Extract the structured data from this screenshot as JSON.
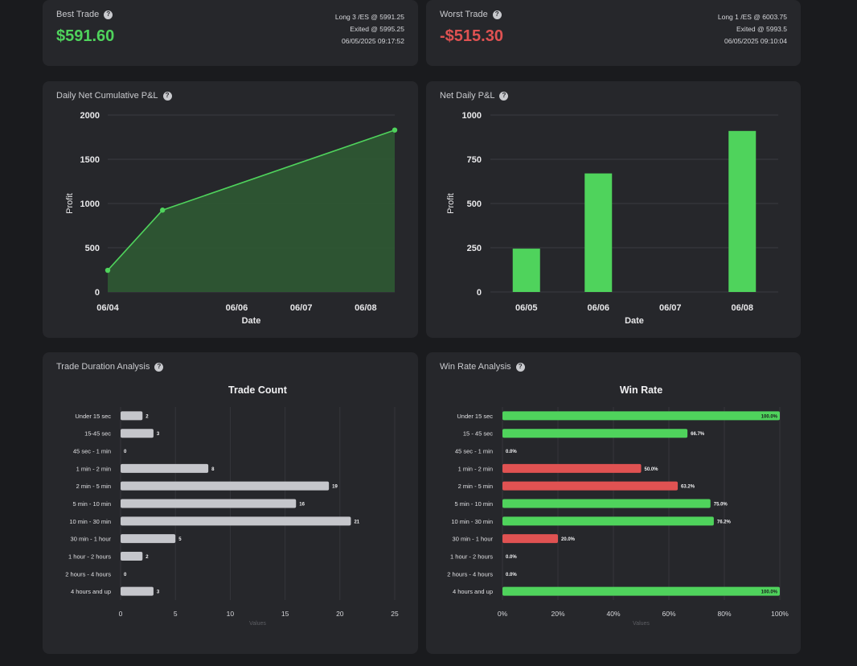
{
  "best_trade": {
    "title": "Best Trade",
    "value": "$591.60",
    "line1": "Long 3 /ES @ 5991.25",
    "line2": "Exited @ 5995.25",
    "line3": "06/05/2025 09:17:52"
  },
  "worst_trade": {
    "title": "Worst Trade",
    "value": "-$515.30",
    "line1": "Long 1 /ES @ 6003.75",
    "line2": "Exited @ 5993.5",
    "line3": "06/05/2025 09:10:04"
  },
  "colors": {
    "green": "#4fd35c",
    "red": "#e05252",
    "gray_bar": "#c5c6cb"
  },
  "chart_data": [
    {
      "id": "cumulative",
      "type": "area",
      "title": "Daily Net Cumulative P&L",
      "xlabel": "Date",
      "ylabel": "Profit",
      "ylim": [
        0,
        2000
      ],
      "yticks": [
        0,
        500,
        1000,
        1500,
        2000
      ],
      "xticks": [
        {
          "label": "06/04",
          "day": 4
        },
        {
          "label": "06/06",
          "day": 6
        },
        {
          "label": "06/07",
          "day": 7
        },
        {
          "label": "06/08",
          "day": 8
        }
      ],
      "xlim": [
        4,
        8.45
      ],
      "points": [
        {
          "day": 4,
          "y": 245
        },
        {
          "day": 4.85,
          "y": 925
        },
        {
          "day": 8.45,
          "y": 1830
        }
      ],
      "grid": true
    },
    {
      "id": "netdaily",
      "type": "bar",
      "title": "Net Daily P&L",
      "xlabel": "Date",
      "ylabel": "Profit",
      "ylim": [
        0,
        1000
      ],
      "yticks": [
        0,
        250,
        500,
        750,
        1000
      ],
      "categories": [
        "06/05",
        "06/06",
        "06/07",
        "06/08"
      ],
      "values": [
        245,
        670,
        null,
        910
      ],
      "grid": true
    },
    {
      "id": "duration",
      "type": "bar",
      "orientation": "horizontal",
      "title": "Trade Duration Analysis",
      "chart_title": "Trade Count",
      "xlabel": "Values",
      "xlim": [
        0,
        25
      ],
      "xticks": [
        0,
        5,
        10,
        15,
        20,
        25
      ],
      "categories": [
        "Under 15 sec",
        "15-45 sec",
        "45 sec - 1 min",
        "1 min - 2 min",
        "2 min - 5 min",
        "5 min - 10 min",
        "10 min - 30 min",
        "30 min - 1 hour",
        "1 hour - 2 hours",
        "2 hours - 4 hours",
        "4 hours and up"
      ],
      "values": [
        2,
        3,
        0,
        8,
        19,
        16,
        21,
        5,
        2,
        0,
        3
      ],
      "labels": [
        "2",
        "3",
        "0",
        "8",
        "19",
        "16",
        "21",
        "5",
        "2",
        "0",
        "3"
      ]
    },
    {
      "id": "winrate",
      "type": "bar",
      "orientation": "horizontal",
      "title": "Win Rate Analysis",
      "chart_title": "Win Rate",
      "xlabel": "Values",
      "xlim": [
        0,
        100
      ],
      "xticks": [
        "0%",
        "20%",
        "40%",
        "60%",
        "80%",
        "100%"
      ],
      "categories": [
        "Under 15 sec",
        "15 - 45 sec",
        "45 sec - 1 min",
        "1 min - 2 min",
        "2 min - 5 min",
        "5 min - 10 min",
        "10 min - 30 min",
        "30 min - 1 hour",
        "1 hour - 2 hours",
        "2 hours - 4 hours",
        "4 hours and up"
      ],
      "values": [
        100,
        66.7,
        0,
        50,
        63.2,
        75,
        76.2,
        20,
        0,
        0,
        100
      ],
      "labels": [
        "100.0%",
        "66.7%",
        "0.0%",
        "50.0%",
        "63.2%",
        "75.0%",
        "76.2%",
        "20.0%",
        "0.0%",
        "0.0%",
        "100.0%"
      ]
    }
  ]
}
